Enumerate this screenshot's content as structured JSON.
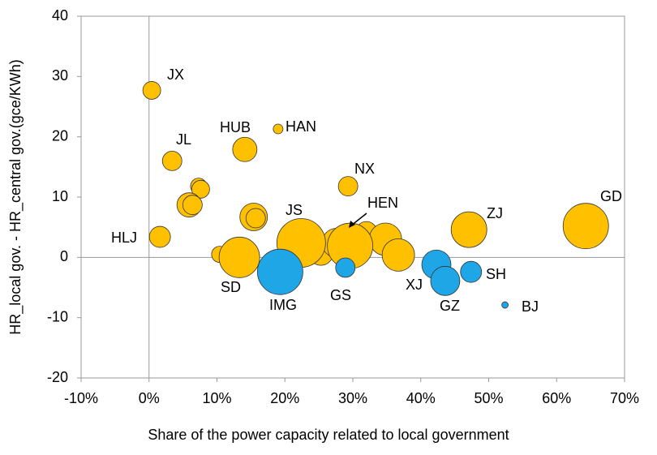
{
  "chart_data": {
    "type": "bubble",
    "xlabel": "Share  of the power capacity related to local government",
    "ylabel": "HR_local gov. - HR_central gov.(gce/KWh)",
    "xlim": [
      -10,
      70
    ],
    "ylim": [
      -20,
      40
    ],
    "xticks": [
      {
        "value": -10,
        "label": "-10%"
      },
      {
        "value": 0,
        "label": "0%"
      },
      {
        "value": 10,
        "label": "10%"
      },
      {
        "value": 20,
        "label": "20%"
      },
      {
        "value": 30,
        "label": "30%"
      },
      {
        "value": 40,
        "label": "40%"
      },
      {
        "value": 50,
        "label": "50%"
      },
      {
        "value": 60,
        "label": "60%"
      },
      {
        "value": 70,
        "label": "70%"
      }
    ],
    "yticks": [
      -20,
      -10,
      0,
      10,
      20,
      30,
      40
    ],
    "series": [
      {
        "color": "#FFC000",
        "x": [
          0.4,
          3.4,
          14.1,
          19.0,
          7.3,
          7.6,
          5.9,
          6.4,
          15.4,
          15.7,
          1.6,
          10.4,
          13.3,
          29.3,
          25.3,
          27.6,
          32.0,
          34.8,
          36.7,
          22.4,
          29.6,
          47.1,
          64.3
        ],
        "values": [
          27.7,
          16.0,
          17.9,
          21.3,
          11.8,
          11.3,
          8.7,
          8.7,
          6.7,
          6.5,
          3.4,
          0.5,
          0,
          11.8,
          0.7,
          2.4,
          4.2,
          3.0,
          0.4,
          2.4,
          1.9,
          4.6,
          5.2
        ],
        "sizes": [
          11,
          12,
          15,
          6,
          10,
          11,
          15,
          12,
          17,
          12,
          13,
          10,
          25,
          12,
          15,
          18,
          13,
          20,
          20,
          30,
          28,
          22,
          28
        ],
        "labels": [
          "JX",
          "JL",
          "HUB",
          "HAN",
          null,
          null,
          null,
          null,
          null,
          null,
          "HLJ",
          null,
          "SD",
          "NX",
          null,
          null,
          null,
          null,
          null,
          "JS",
          "HEN",
          "ZJ",
          "GD"
        ]
      },
      {
        "color": "#1FA6E6",
        "x": [
          19.3,
          28.9,
          42.3,
          43.6,
          47.4,
          52.4
        ],
        "values": [
          -2.4,
          -1.7,
          -1.2,
          -3.9,
          -2.4,
          -7.9
        ],
        "sizes": [
          28,
          12,
          18,
          18,
          13,
          4
        ],
        "labels": [
          "IMG",
          "GS",
          "XJ",
          "GZ",
          "SH",
          "BJ"
        ]
      }
    ]
  }
}
